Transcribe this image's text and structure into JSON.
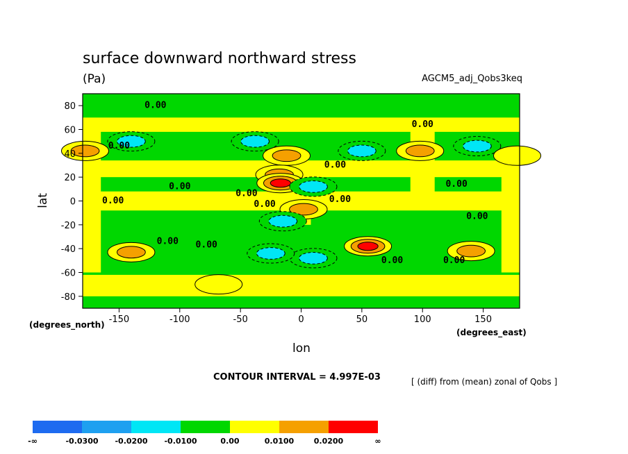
{
  "chart_data": {
    "type": "heatmap",
    "title": "surface downward northward stress",
    "units": "(Pa)",
    "dataset": "AGCM5_adj_Qobs3keq",
    "xlabel": "lon",
    "ylabel": "lat",
    "x_units": "(degrees_east)",
    "y_units": "(degrees_north)",
    "xlim": [
      -180,
      180
    ],
    "ylim": [
      -90,
      90
    ],
    "x_ticks": [
      -150,
      -100,
      -50,
      0,
      50,
      100,
      150
    ],
    "y_ticks": [
      80,
      60,
      40,
      20,
      0,
      -20,
      -40,
      -60,
      -80
    ],
    "contour_interval_text": "CONTOUR INTERVAL = 4.997E-03",
    "footnote": "[ (diff) from (mean) zonal of Qobs ]",
    "contour_labels": [
      "0.00"
    ],
    "colorbar": {
      "labels": [
        "-∞",
        "-0.0300",
        "-0.0200",
        "-0.0100",
        "0.00",
        "0.0100",
        "0.0200",
        "∞"
      ],
      "colors": [
        "#1e6bf0",
        "#1ea0f0",
        "#00e6f5",
        "#00d700",
        "#ffff00",
        "#f5a000",
        "#ff0000"
      ]
    },
    "features": [
      {
        "lon": -140,
        "lat": 50,
        "value": -0.015
      },
      {
        "lon": -38,
        "lat": 50,
        "value": -0.012
      },
      {
        "lon": -12,
        "lat": 38,
        "value": 0.013
      },
      {
        "lon": -18,
        "lat": 22,
        "value": 0.018
      },
      {
        "lon": -17,
        "lat": 15,
        "value": 0.025
      },
      {
        "lon": 10,
        "lat": 12,
        "value": -0.012
      },
      {
        "lon": 50,
        "lat": 42,
        "value": -0.015
      },
      {
        "lon": 98,
        "lat": 42,
        "value": 0.012
      },
      {
        "lon": 145,
        "lat": 46,
        "value": -0.015
      },
      {
        "lon": -178,
        "lat": 42,
        "value": 0.012
      },
      {
        "lon": 178,
        "lat": 38,
        "value": 0.008
      },
      {
        "lon": 2,
        "lat": -7,
        "value": 0.012
      },
      {
        "lon": -15,
        "lat": -17,
        "value": -0.015
      },
      {
        "lon": 10,
        "lat": -48,
        "value": -0.012
      },
      {
        "lon": 55,
        "lat": -38,
        "value": 0.025
      },
      {
        "lon": -140,
        "lat": -43,
        "value": 0.015
      },
      {
        "lon": 140,
        "lat": -42,
        "value": 0.015
      },
      {
        "lon": -68,
        "lat": -70,
        "value": 0.008
      },
      {
        "lon": -25,
        "lat": -44,
        "value": -0.011
      }
    ]
  }
}
